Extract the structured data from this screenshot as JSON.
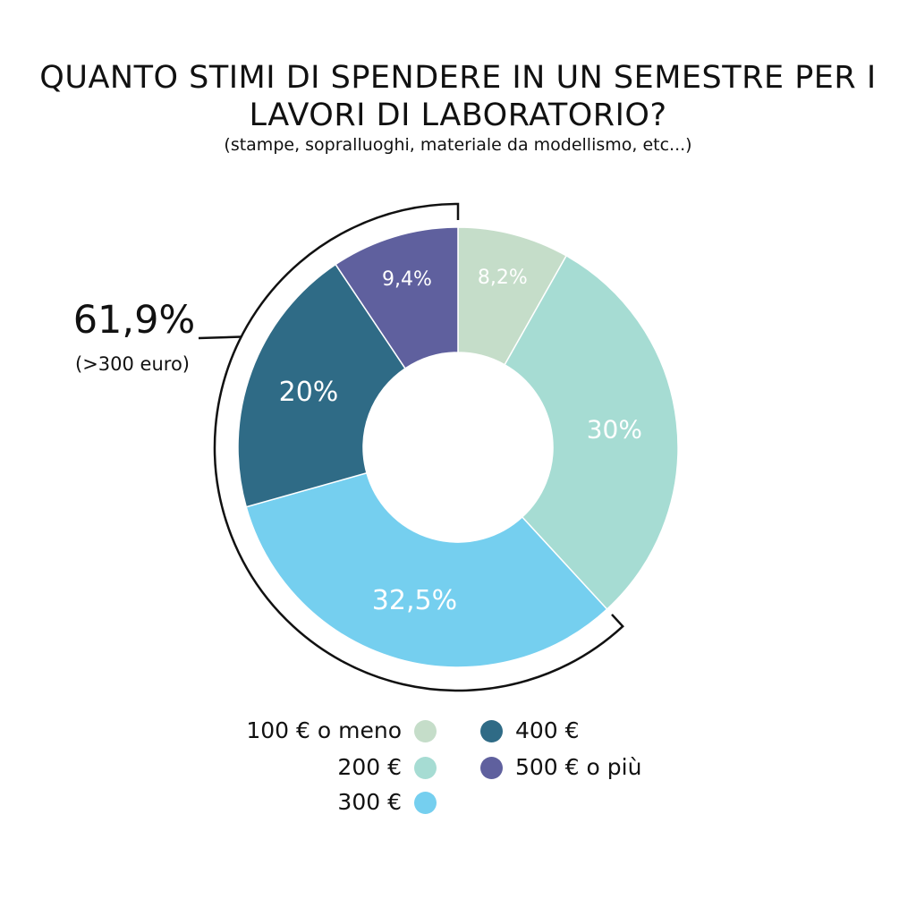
{
  "chart_data": {
    "type": "pie",
    "donut": true,
    "title": "QUANTO STIMI DI SPENDERE IN UN SEMESTRE PER I LAVORI DI LABORATORIO?",
    "subtitle": "(stampe, sopralluoghi, materiale da modellismo, etc...)",
    "categories": [
      "100 € o meno",
      "200 €",
      "300 €",
      "400 €",
      "500 € o più"
    ],
    "values": [
      8.2,
      30,
      32.5,
      20,
      9.4
    ],
    "data_labels": [
      "8,2%",
      "30%",
      "32,5%",
      "20%",
      "9,4%"
    ],
    "colors": [
      "#c5ddc9",
      "#a6dcd3",
      "#75cfef",
      "#2f6b86",
      "#5f609e"
    ],
    "annotation": {
      "value": "61,9%",
      "text": "(>300 euro)",
      "covers": [
        "300 €",
        "400 €",
        "500 € o più"
      ]
    },
    "legend_placement": "bottom"
  }
}
